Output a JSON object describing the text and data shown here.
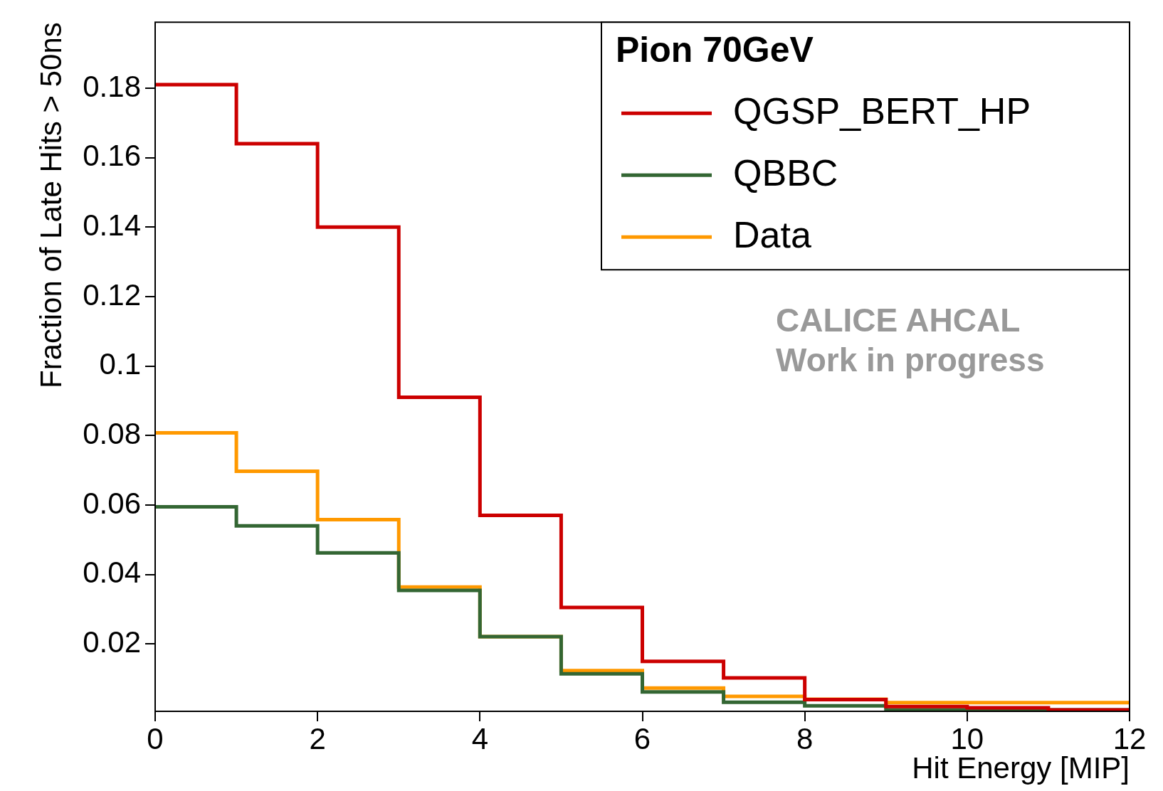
{
  "chart_data": {
    "type": "histogram",
    "xlabel": "Hit Energy [MIP]",
    "ylabel": "Fraction of Late Hits > 50ns",
    "legend_title": "Pion 70GeV",
    "legend": "top right",
    "bins": [
      0,
      1,
      2,
      3,
      4,
      5,
      6,
      7,
      8,
      9,
      10,
      11,
      12
    ],
    "series": [
      {
        "name": "QGSP_BERT_HP",
        "color": "#cc0000",
        "values": [
          0.181,
          0.164,
          0.14,
          0.091,
          0.057,
          0.0305,
          0.015,
          0.0102,
          0.004,
          0.002,
          0.0016,
          0.001
        ]
      },
      {
        "name": "QBBC",
        "color": "#336633",
        "values": [
          0.0595,
          0.054,
          0.0462,
          0.0354,
          0.0221,
          0.0114,
          0.0062,
          0.0032,
          0.0022,
          0.001,
          0.001,
          0.001
        ]
      },
      {
        "name": "Data",
        "color": "#ff9900",
        "values": [
          0.0808,
          0.0697,
          0.0558,
          0.0364,
          0.0221,
          0.0123,
          0.0073,
          0.0049,
          0.0041,
          0.0031,
          0.0031,
          0.0031
        ]
      }
    ],
    "xlim": [
      0,
      12
    ],
    "xticks": [
      0,
      2,
      4,
      6,
      8,
      10,
      12
    ],
    "ylim": [
      0.0006,
      0.199
    ],
    "yticks": [
      {
        "value": 0.02,
        "label": "0.02"
      },
      {
        "value": 0.04,
        "label": "0.04"
      },
      {
        "value": 0.06,
        "label": "0.06"
      },
      {
        "value": 0.08,
        "label": "0.08"
      },
      {
        "value": 0.1,
        "label": "0.1"
      },
      {
        "value": 0.12,
        "label": "0.12"
      },
      {
        "value": 0.14,
        "label": "0.14"
      },
      {
        "value": 0.16,
        "label": "0.16"
      },
      {
        "value": 0.18,
        "label": "0.18"
      }
    ],
    "grid": false,
    "annotations": [
      "CALICE AHCAL",
      "Work in progress"
    ]
  }
}
